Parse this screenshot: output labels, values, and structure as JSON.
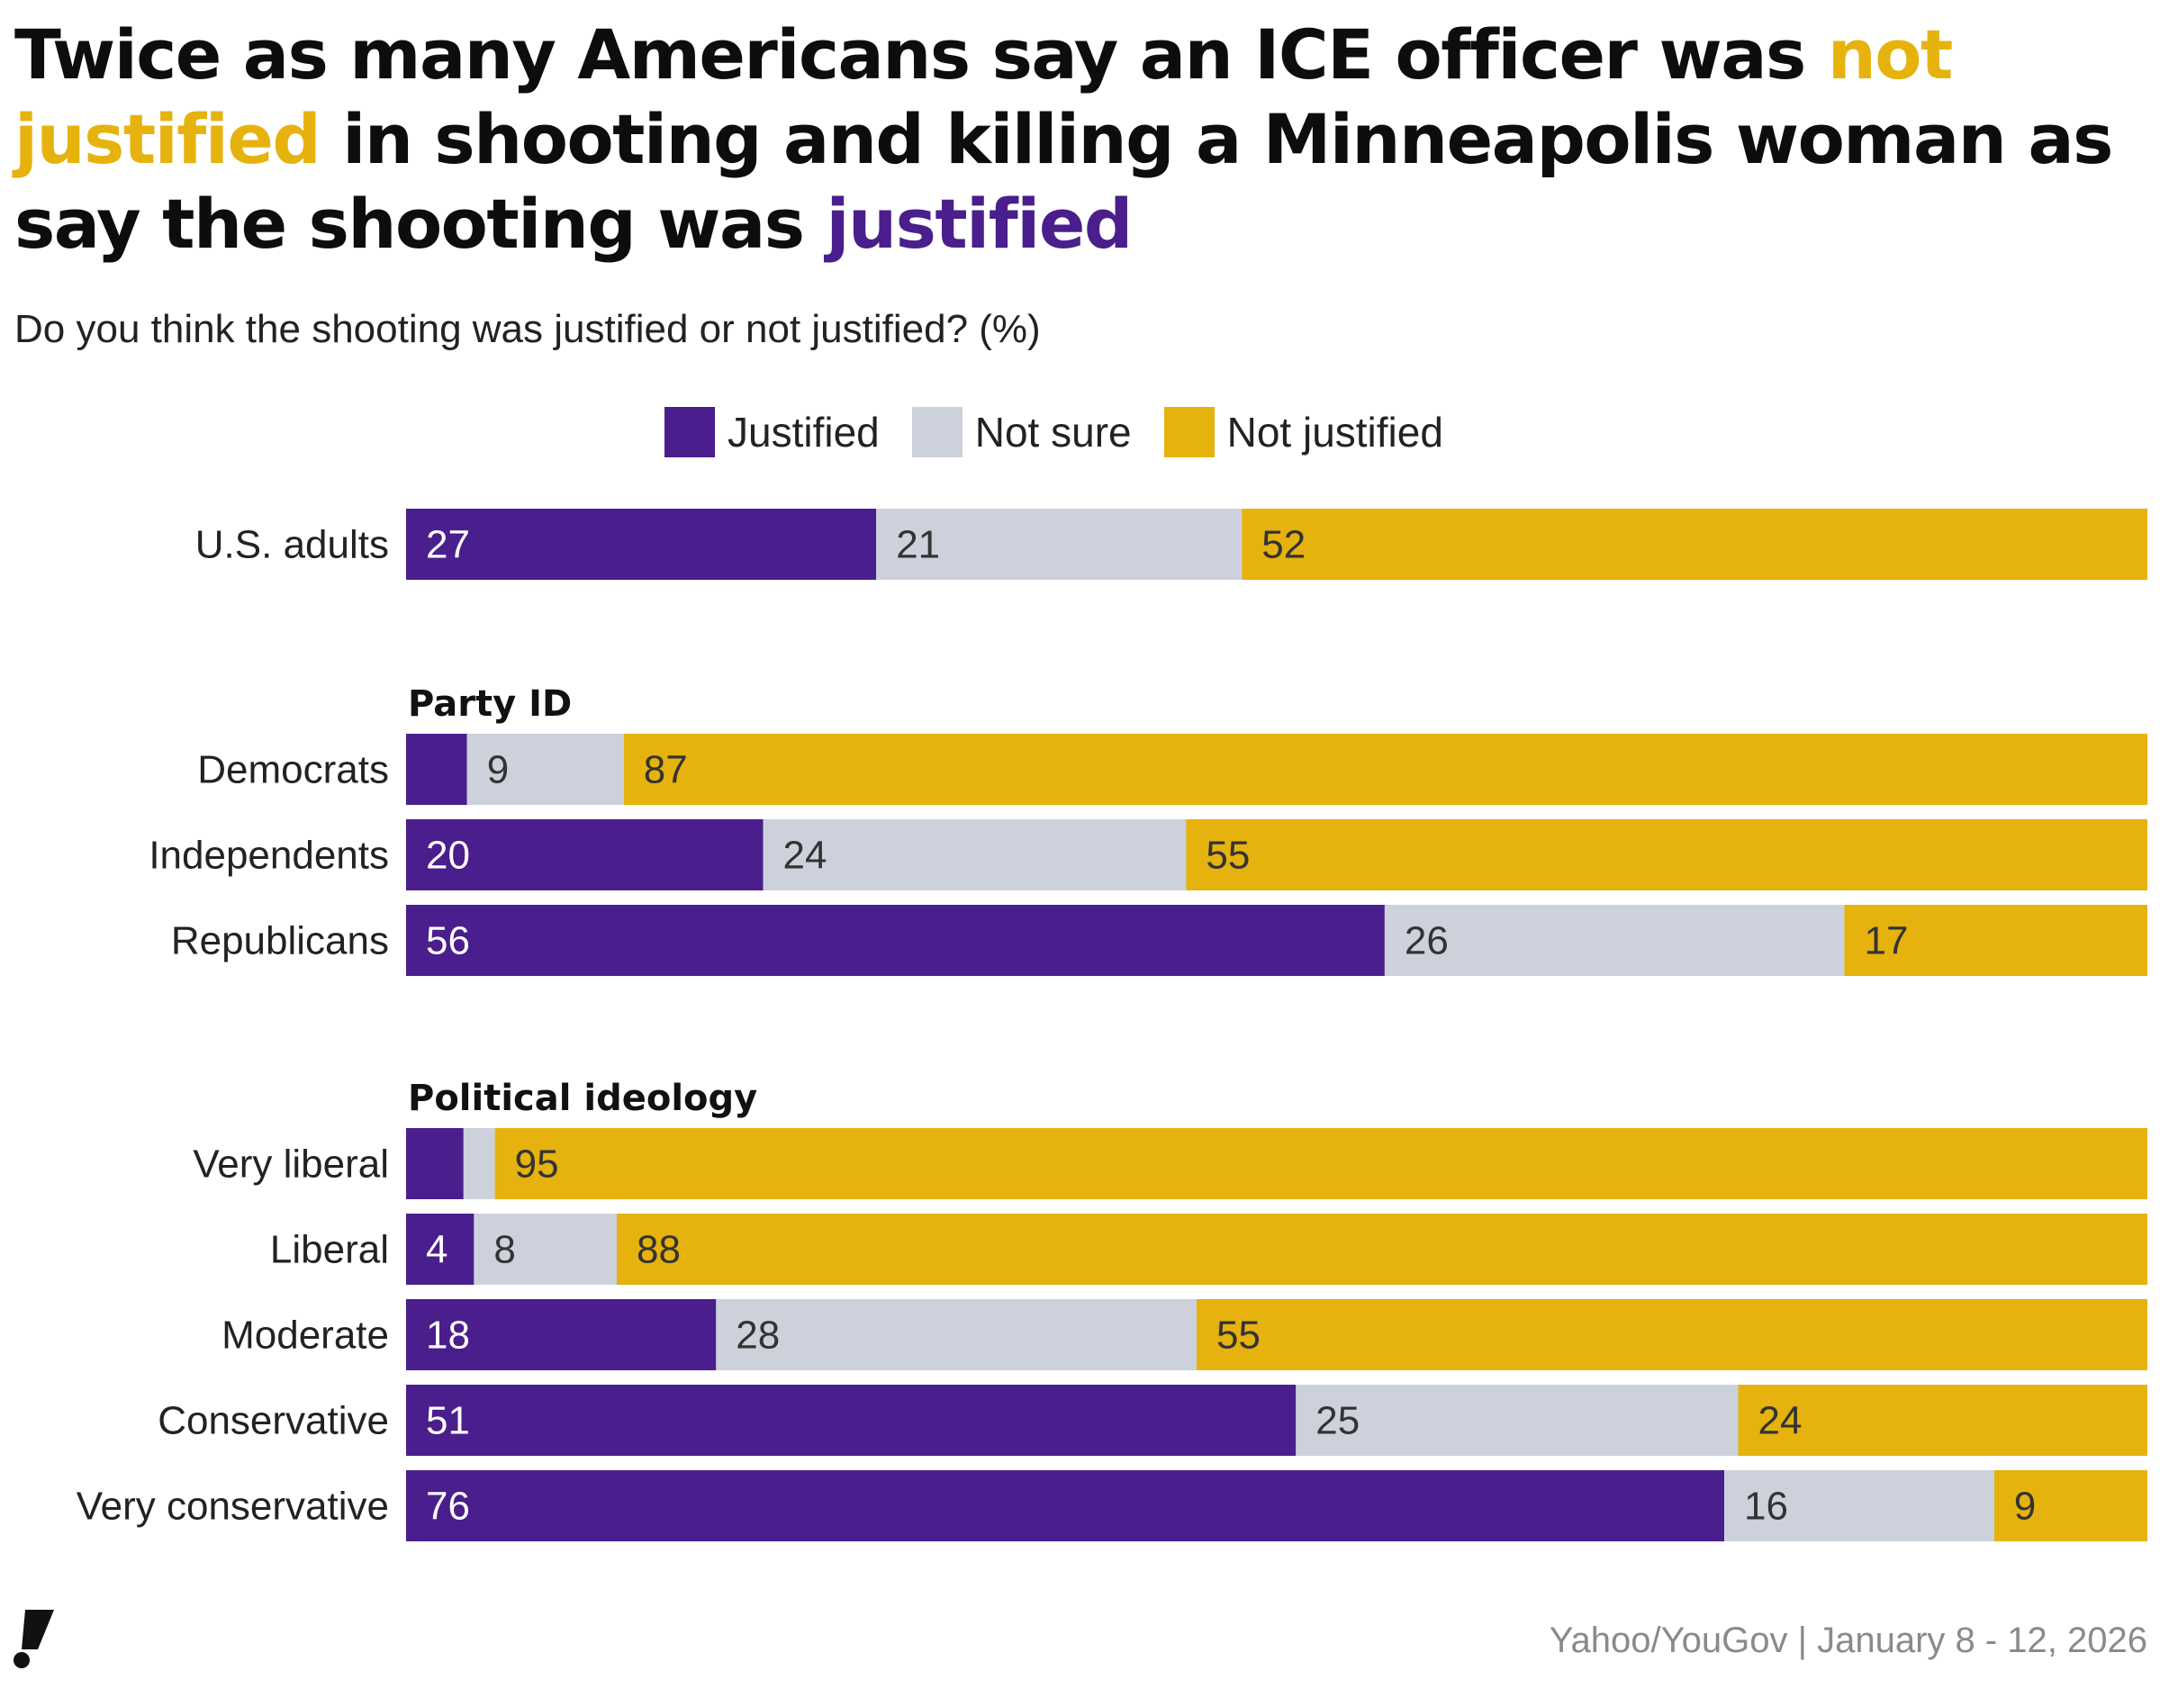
{
  "title": {
    "part1": "Twice as many Americans say an ICE officer was ",
    "highlight1": "not justified",
    "part2": " in shooting and killing a Minneapolis woman as say the shooting was ",
    "highlight2": "justified"
  },
  "subtitle": "Do you think the shooting was justified or not justified? (%)",
  "legend": [
    {
      "label": "Justified",
      "color": "#4a1e8c"
    },
    {
      "label": "Not sure",
      "color": "#cdd1dc"
    },
    {
      "label": "Not justified",
      "color": "#e6b20d"
    }
  ],
  "source": "Yahoo/YouGov | January 8 - 12, 2026",
  "logo_icon": "exclamation-logo-icon",
  "chart_data": {
    "type": "bar",
    "orientation": "horizontal",
    "stacked": true,
    "unit": "%",
    "xlim": [
      0,
      100
    ],
    "series_names": [
      "Justified",
      "Not sure",
      "Not justified"
    ],
    "colors": [
      "#4a1e8c",
      "#cdd1dc",
      "#e6b20d"
    ],
    "label_colors": [
      "#ffffff",
      "#333333",
      "#333333"
    ],
    "groups": [
      {
        "heading": "",
        "rows": [
          {
            "label": "U.S. adults",
            "values": [
              27,
              21,
              52
            ],
            "labels": [
              "27",
              "21",
              "52"
            ]
          }
        ]
      },
      {
        "heading": "Party ID",
        "rows": [
          {
            "label": "Democrats",
            "values": [
              3.5,
              9,
              87.5
            ],
            "labels": [
              "",
              "9",
              "87"
            ]
          },
          {
            "label": "Independents",
            "values": [
              20.5,
              24.3,
              55.2
            ],
            "labels": [
              "20",
              "24",
              "55"
            ]
          },
          {
            "label": "Republicans",
            "values": [
              56.2,
              26.4,
              17.4
            ],
            "labels": [
              "56",
              "26",
              "17"
            ]
          }
        ]
      },
      {
        "heading": "Political ideology",
        "rows": [
          {
            "label": "Very liberal",
            "values": [
              3.3,
              1.8,
              94.9
            ],
            "labels": [
              "",
              "",
              "95"
            ]
          },
          {
            "label": "Liberal",
            "values": [
              3.9,
              8.2,
              87.9
            ],
            "labels": [
              "4",
              "8",
              "88"
            ]
          },
          {
            "label": "Moderate",
            "values": [
              17.8,
              27.6,
              54.6
            ],
            "labels": [
              "18",
              "28",
              "55"
            ]
          },
          {
            "label": "Conservative",
            "values": [
              51.1,
              25.4,
              23.5
            ],
            "labels": [
              "51",
              "25",
              "24"
            ]
          },
          {
            "label": "Very conservative",
            "values": [
              75.7,
              15.5,
              8.8
            ],
            "labels": [
              "76",
              "16",
              "9"
            ]
          }
        ]
      }
    ]
  }
}
